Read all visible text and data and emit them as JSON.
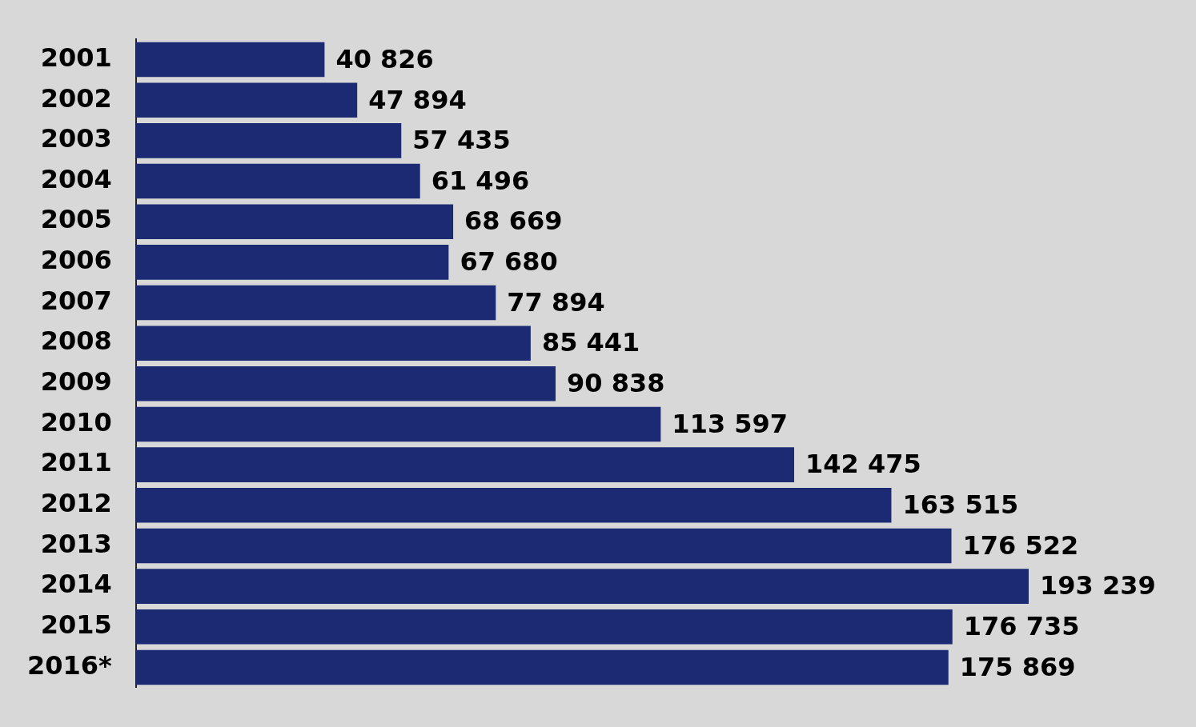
{
  "chart_data": {
    "type": "bar",
    "orientation": "horizontal",
    "tick_labels": "y",
    "legend": false,
    "categories": [
      "2001",
      "2002",
      "2003",
      "2004",
      "2005",
      "2006",
      "2007",
      "2008",
      "2009",
      "2010",
      "2011",
      "2012",
      "2013",
      "2014",
      "2015",
      "2016*"
    ],
    "values": [
      40826,
      47894,
      57435,
      61496,
      68669,
      67680,
      77894,
      85441,
      90838,
      113597,
      142475,
      163515,
      176522,
      193239,
      176735,
      175869
    ],
    "value_labels": [
      "40 826",
      "47 894",
      "57 435",
      "61 496",
      "68 669",
      "67 680",
      "77 894",
      "85 441",
      "90 838",
      "113 597",
      "142 475",
      "163 515",
      "176 522",
      "193 239",
      "176 735",
      "175 869"
    ],
    "color": "#1b2a72"
  }
}
